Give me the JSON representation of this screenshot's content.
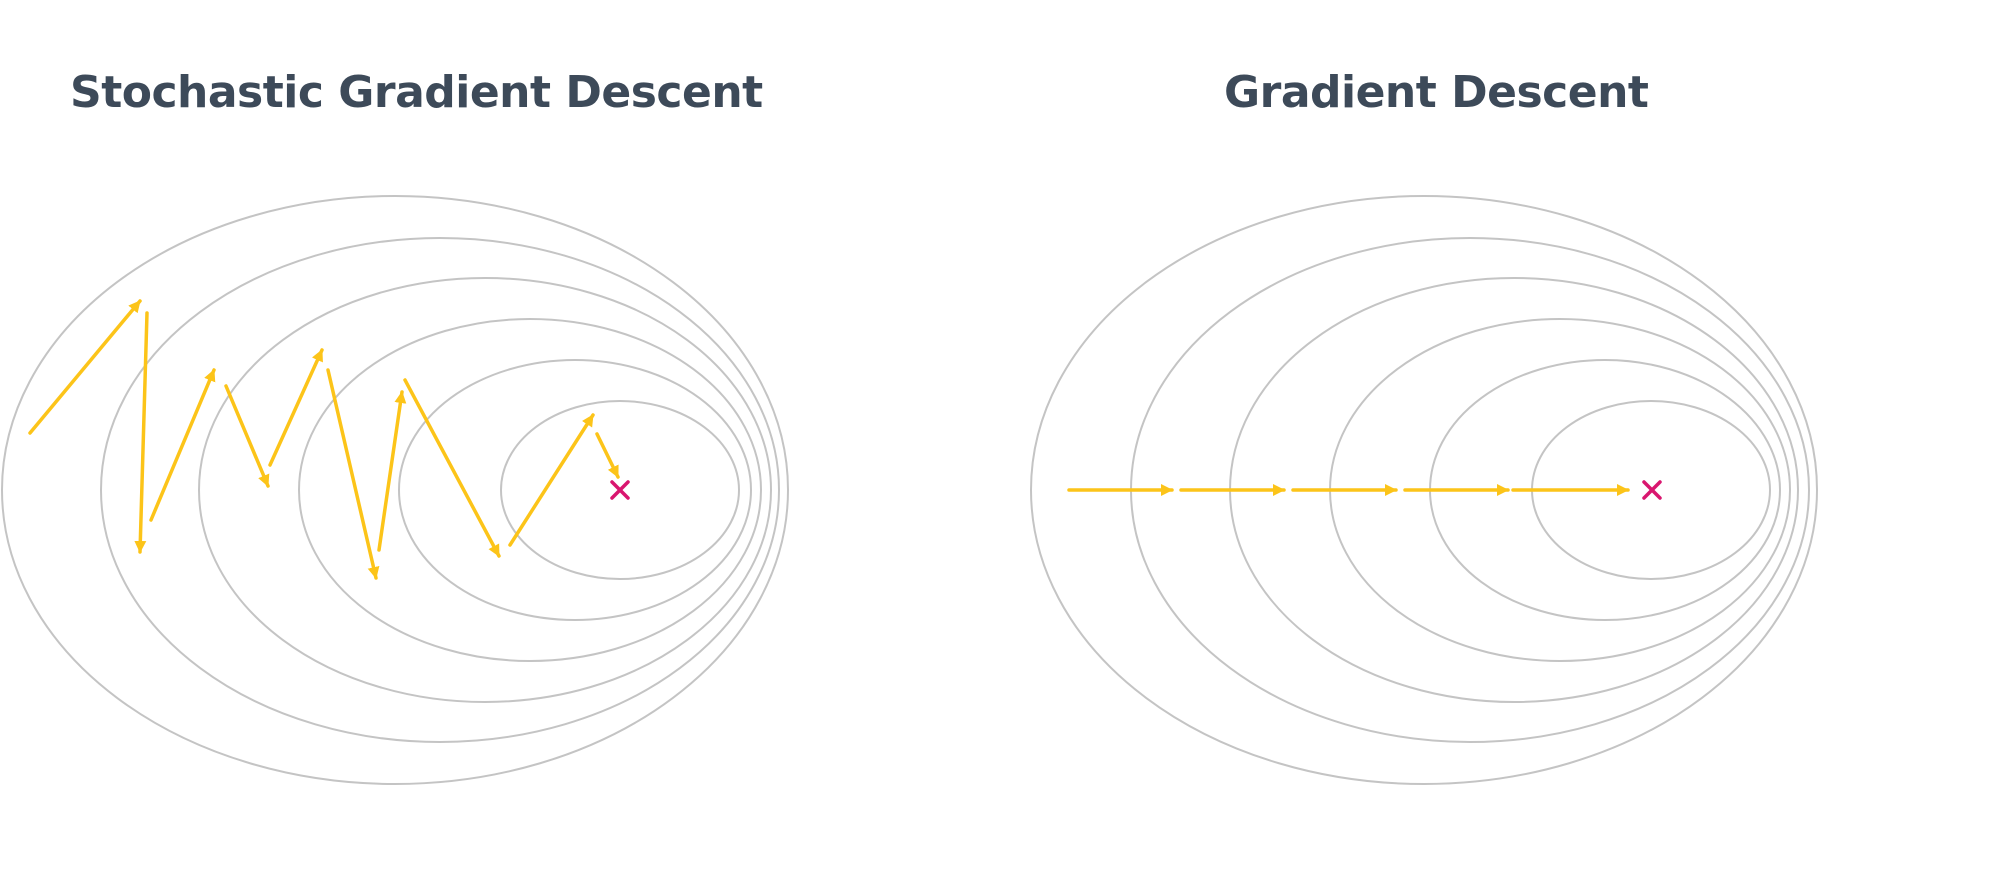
{
  "panels": {
    "left": {
      "title": "Stochastic Gradient Descent"
    },
    "right": {
      "title": "Gradient Descent"
    }
  },
  "colors": {
    "title": "#3d4a59",
    "contour": "#c4c4c4",
    "arrow": "#fcc419",
    "minimum": "#d9166f"
  },
  "icons": {
    "minimum": "cross-icon",
    "step": "arrow-icon"
  }
}
